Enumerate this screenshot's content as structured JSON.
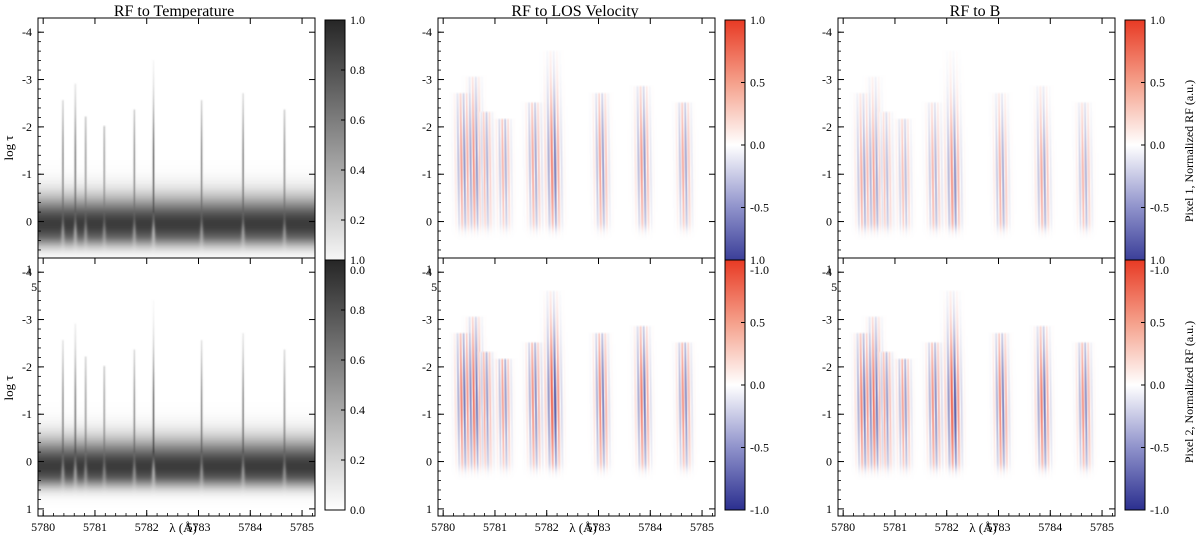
{
  "chart_data": {
    "type": "heatmap",
    "column_titles": [
      "RF to Temperature",
      "RF to LOS Velocity",
      "RF to B"
    ],
    "row_labels": [
      "Pixel 1, Normalized RF (a.u.)",
      "Pixel 2, Normalized RF (a.u.)"
    ],
    "xlabel": "λ (Å)",
    "ylabel": "log τ",
    "xlim": [
      5779.9,
      5785.25
    ],
    "ylim": [
      1.15,
      -4.3
    ],
    "xticks": [
      5780,
      5781,
      5782,
      5783,
      5784,
      5785
    ],
    "yticks": [
      -4,
      -3,
      -2,
      -1,
      0,
      1
    ],
    "colorbars": [
      {
        "colormap": "gray-reversed",
        "range": [
          0.0,
          1.0
        ],
        "ticks": [
          1.0,
          0.8,
          0.6,
          0.4,
          0.2,
          0.0
        ],
        "tick_labels": [
          "1.0",
          "0.8",
          "0.6",
          "0.4",
          "0.2",
          "0.0"
        ]
      },
      {
        "colormap": "blue-white-red",
        "range": [
          -1.0,
          1.0
        ],
        "ticks": [
          1.0,
          0.5,
          0.0,
          -0.5,
          -1.0
        ],
        "tick_labels": [
          "1.0",
          "0.5",
          "0.0",
          "-0.5",
          "-1.0"
        ]
      },
      {
        "colormap": "blue-white-red",
        "range": [
          -1.0,
          1.0
        ],
        "ticks": [
          1.0,
          0.5,
          0.0,
          -0.5,
          -1.0
        ],
        "tick_labels": [
          "1.0",
          "0.5",
          "0.0",
          "-0.5",
          "-1.0"
        ]
      }
    ],
    "spectral_lines": [
      5780.38,
      5780.62,
      5780.82,
      5781.18,
      5781.76,
      5782.13,
      5783.06,
      5783.86,
      5784.66
    ],
    "line_strengths": [
      0.75,
      0.85,
      0.65,
      0.6,
      0.7,
      1.0,
      0.75,
      0.8,
      0.7
    ],
    "panels": [
      {
        "row": 1,
        "quantity": "Temperature",
        "continuum_peak_logtau": 0.05,
        "line_peak_logtau": -1.2
      },
      {
        "row": 1,
        "quantity": "LOS Velocity",
        "amplitude": 0.7,
        "core_logtau": -1.2
      },
      {
        "row": 1,
        "quantity": "B",
        "amplitude": 0.6,
        "core_logtau": -0.9
      },
      {
        "row": 2,
        "quantity": "Temperature",
        "continuum_peak_logtau": 0.1,
        "line_peak_logtau": -1.0
      },
      {
        "row": 2,
        "quantity": "LOS Velocity",
        "amplitude": 0.9,
        "core_logtau": -1.3
      },
      {
        "row": 2,
        "quantity": "B",
        "amplitude": 0.9,
        "core_logtau": -1.2
      }
    ]
  }
}
